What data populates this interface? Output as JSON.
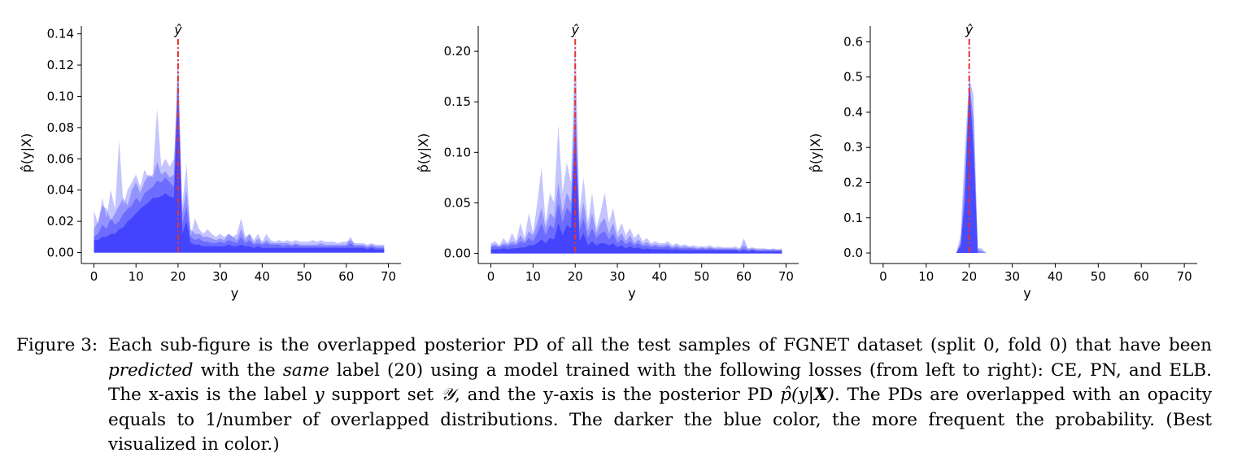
{
  "figure": {
    "label": "Figure 3:",
    "caption_parts": [
      {
        "t": "Each sub-figure is the overlapped posterior PD of all the test samples of FGNET dataset (split 0, fold 0) that have been "
      },
      {
        "t": "predicted",
        "s": "em"
      },
      {
        "t": " with the "
      },
      {
        "t": "same",
        "s": "em"
      },
      {
        "t": " label (20) using a model trained with the following losses (from left to right): CE, PN, and ELB. The x-axis is the label "
      },
      {
        "t": "y",
        "s": "math"
      },
      {
        "t": " support set "
      },
      {
        "t": "𝒴",
        "s": "math"
      },
      {
        "t": ", and the y-axis is the posterior PD "
      },
      {
        "t": "p̂(y|",
        "s": "math"
      },
      {
        "t": "X",
        "s": "mathbold"
      },
      {
        "t": ")",
        "s": "math"
      },
      {
        "t": ". The PDs are overlapped with an opacity equals to 1/number of overlapped distributions.  The darker the blue color, the more frequent the probability. (Best visualized in color.)"
      }
    ]
  },
  "colors": {
    "fill": "#3b3bff",
    "marker": "#e8322e",
    "axis": "#000000"
  },
  "chart_data": [
    {
      "type": "area",
      "xlabel": "y",
      "ylabel": "p̂(y|X)",
      "marker_label": "ŷ",
      "marker_x": 20,
      "xlim": [
        -3,
        73
      ],
      "ylim": [
        -0.007,
        0.145
      ],
      "xticks": [
        0,
        10,
        20,
        30,
        40,
        50,
        60,
        70
      ],
      "yticks": [
        0.0,
        0.02,
        0.04,
        0.06,
        0.08,
        0.1,
        0.12,
        0.14
      ],
      "ytick_labels": [
        "0.00",
        "0.02",
        "0.04",
        "0.06",
        "0.08",
        "0.10",
        "0.12",
        "0.14"
      ],
      "x": [
        0,
        1,
        2,
        3,
        4,
        5,
        6,
        7,
        8,
        9,
        10,
        11,
        12,
        13,
        14,
        15,
        16,
        17,
        18,
        19,
        20,
        21,
        22,
        23,
        24,
        25,
        26,
        27,
        28,
        29,
        30,
        31,
        32,
        33,
        34,
        35,
        36,
        37,
        38,
        39,
        40,
        41,
        42,
        43,
        44,
        45,
        46,
        47,
        48,
        49,
        50,
        51,
        52,
        53,
        54,
        55,
        56,
        57,
        58,
        59,
        60,
        61,
        62,
        63,
        64,
        65,
        66,
        67,
        68,
        69
      ],
      "series": [
        {
          "opacity": 0.3,
          "values": [
            0.027,
            0.018,
            0.035,
            0.022,
            0.04,
            0.028,
            0.072,
            0.03,
            0.04,
            0.045,
            0.05,
            0.042,
            0.053,
            0.048,
            0.05,
            0.092,
            0.055,
            0.06,
            0.055,
            0.06,
            0.105,
            0.03,
            0.057,
            0.01,
            0.022,
            0.015,
            0.012,
            0.015,
            0.012,
            0.01,
            0.012,
            0.01,
            0.012,
            0.01,
            0.012,
            0.022,
            0.01,
            0.012,
            0.008,
            0.012,
            0.007,
            0.012,
            0.008,
            0.007,
            0.008,
            0.007,
            0.008,
            0.007,
            0.008,
            0.007,
            0.007,
            0.007,
            0.008,
            0.007,
            0.008,
            0.007,
            0.007,
            0.007,
            0.006,
            0.007,
            0.007,
            0.008,
            0.006,
            0.006,
            0.006,
            0.005,
            0.006,
            0.005,
            0.005,
            0.005
          ]
        },
        {
          "opacity": 0.35,
          "values": [
            0.015,
            0.02,
            0.03,
            0.028,
            0.02,
            0.025,
            0.03,
            0.035,
            0.03,
            0.04,
            0.045,
            0.038,
            0.045,
            0.05,
            0.048,
            0.058,
            0.05,
            0.052,
            0.048,
            0.05,
            0.13,
            0.025,
            0.04,
            0.015,
            0.012,
            0.012,
            0.01,
            0.01,
            0.009,
            0.008,
            0.009,
            0.008,
            0.012,
            0.01,
            0.008,
            0.015,
            0.008,
            0.012,
            0.006,
            0.009,
            0.006,
            0.008,
            0.006,
            0.006,
            0.006,
            0.006,
            0.006,
            0.005,
            0.006,
            0.005,
            0.005,
            0.005,
            0.005,
            0.005,
            0.006,
            0.005,
            0.005,
            0.005,
            0.005,
            0.005,
            0.005,
            0.01,
            0.005,
            0.005,
            0.005,
            0.004,
            0.005,
            0.004,
            0.004,
            0.004
          ]
        },
        {
          "opacity": 0.45,
          "values": [
            0.01,
            0.012,
            0.018,
            0.015,
            0.022,
            0.018,
            0.02,
            0.025,
            0.028,
            0.03,
            0.035,
            0.032,
            0.038,
            0.04,
            0.042,
            0.046,
            0.045,
            0.048,
            0.045,
            0.042,
            0.12,
            0.018,
            0.03,
            0.01,
            0.008,
            0.009,
            0.007,
            0.007,
            0.006,
            0.006,
            0.007,
            0.006,
            0.008,
            0.007,
            0.006,
            0.01,
            0.006,
            0.008,
            0.005,
            0.006,
            0.005,
            0.006,
            0.005,
            0.005,
            0.005,
            0.004,
            0.005,
            0.004,
            0.005,
            0.004,
            0.004,
            0.004,
            0.004,
            0.004,
            0.004,
            0.004,
            0.004,
            0.004,
            0.004,
            0.004,
            0.004,
            0.006,
            0.004,
            0.004,
            0.004,
            0.003,
            0.004,
            0.003,
            0.003,
            0.003
          ]
        },
        {
          "opacity": 0.8,
          "values": [
            0.008,
            0.008,
            0.01,
            0.01,
            0.012,
            0.012,
            0.015,
            0.016,
            0.02,
            0.022,
            0.025,
            0.028,
            0.03,
            0.032,
            0.035,
            0.035,
            0.036,
            0.038,
            0.036,
            0.035,
            0.1,
            0.012,
            0.02,
            0.006,
            0.005,
            0.005,
            0.004,
            0.004,
            0.004,
            0.004,
            0.004,
            0.004,
            0.005,
            0.004,
            0.004,
            0.005,
            0.004,
            0.004,
            0.003,
            0.004,
            0.003,
            0.003,
            0.003,
            0.003,
            0.003,
            0.003,
            0.003,
            0.003,
            0.003,
            0.003,
            0.003,
            0.003,
            0.003,
            0.003,
            0.003,
            0.003,
            0.003,
            0.003,
            0.003,
            0.003,
            0.003,
            0.003,
            0.003,
            0.003,
            0.003,
            0.002,
            0.003,
            0.002,
            0.002,
            0.002
          ]
        }
      ]
    },
    {
      "type": "area",
      "xlabel": "y",
      "ylabel": "p̂(y|X)",
      "marker_label": "ŷ",
      "marker_x": 20,
      "xlim": [
        -3,
        73
      ],
      "ylim": [
        -0.01,
        0.225
      ],
      "xticks": [
        0,
        10,
        20,
        30,
        40,
        50,
        60,
        70
      ],
      "yticks": [
        0.0,
        0.05,
        0.1,
        0.15,
        0.2
      ],
      "ytick_labels": [
        "0.00",
        "0.05",
        "0.10",
        "0.15",
        "0.20"
      ],
      "x": [
        0,
        1,
        2,
        3,
        4,
        5,
        6,
        7,
        8,
        9,
        10,
        11,
        12,
        13,
        14,
        15,
        16,
        17,
        18,
        19,
        20,
        21,
        22,
        23,
        24,
        25,
        26,
        27,
        28,
        29,
        30,
        31,
        32,
        33,
        34,
        35,
        36,
        37,
        38,
        39,
        40,
        41,
        42,
        43,
        44,
        45,
        46,
        47,
        48,
        49,
        50,
        51,
        52,
        53,
        54,
        55,
        56,
        57,
        58,
        59,
        60,
        61,
        62,
        63,
        64,
        65,
        66,
        67,
        68,
        69
      ],
      "series": [
        {
          "opacity": 0.3,
          "values": [
            0.01,
            0.012,
            0.008,
            0.015,
            0.01,
            0.02,
            0.012,
            0.03,
            0.015,
            0.04,
            0.02,
            0.05,
            0.085,
            0.03,
            0.06,
            0.05,
            0.127,
            0.06,
            0.09,
            0.07,
            0.22,
            0.04,
            0.075,
            0.03,
            0.06,
            0.025,
            0.04,
            0.06,
            0.03,
            0.045,
            0.02,
            0.03,
            0.018,
            0.025,
            0.015,
            0.02,
            0.012,
            0.015,
            0.01,
            0.012,
            0.01,
            0.01,
            0.012,
            0.008,
            0.01,
            0.008,
            0.009,
            0.007,
            0.008,
            0.007,
            0.007,
            0.007,
            0.008,
            0.006,
            0.007,
            0.006,
            0.006,
            0.006,
            0.007,
            0.005,
            0.008,
            0.005,
            0.006,
            0.005,
            0.005,
            0.005,
            0.004,
            0.005,
            0.004,
            0.005
          ]
        },
        {
          "opacity": 0.35,
          "values": [
            0.008,
            0.009,
            0.007,
            0.01,
            0.009,
            0.012,
            0.01,
            0.018,
            0.012,
            0.022,
            0.018,
            0.03,
            0.045,
            0.025,
            0.04,
            0.035,
            0.07,
            0.04,
            0.06,
            0.05,
            0.17,
            0.03,
            0.05,
            0.022,
            0.04,
            0.02,
            0.03,
            0.035,
            0.02,
            0.03,
            0.015,
            0.02,
            0.012,
            0.018,
            0.01,
            0.014,
            0.009,
            0.011,
            0.008,
            0.009,
            0.008,
            0.008,
            0.009,
            0.006,
            0.008,
            0.006,
            0.007,
            0.006,
            0.006,
            0.005,
            0.006,
            0.005,
            0.006,
            0.005,
            0.005,
            0.005,
            0.005,
            0.005,
            0.005,
            0.004,
            0.015,
            0.004,
            0.005,
            0.004,
            0.004,
            0.004,
            0.004,
            0.004,
            0.003,
            0.004
          ]
        },
        {
          "opacity": 0.45,
          "values": [
            0.006,
            0.007,
            0.006,
            0.008,
            0.007,
            0.009,
            0.008,
            0.012,
            0.01,
            0.015,
            0.012,
            0.02,
            0.03,
            0.018,
            0.028,
            0.025,
            0.05,
            0.03,
            0.045,
            0.04,
            0.14,
            0.022,
            0.035,
            0.015,
            0.025,
            0.015,
            0.02,
            0.022,
            0.014,
            0.02,
            0.01,
            0.014,
            0.009,
            0.012,
            0.008,
            0.01,
            0.007,
            0.008,
            0.006,
            0.007,
            0.006,
            0.006,
            0.007,
            0.005,
            0.006,
            0.005,
            0.005,
            0.005,
            0.005,
            0.004,
            0.005,
            0.004,
            0.005,
            0.004,
            0.004,
            0.004,
            0.004,
            0.004,
            0.004,
            0.003,
            0.005,
            0.003,
            0.004,
            0.003,
            0.003,
            0.003,
            0.003,
            0.003,
            0.003,
            0.003
          ]
        },
        {
          "opacity": 0.8,
          "values": [
            0.004,
            0.004,
            0.004,
            0.005,
            0.004,
            0.005,
            0.005,
            0.006,
            0.006,
            0.008,
            0.008,
            0.01,
            0.014,
            0.01,
            0.015,
            0.014,
            0.03,
            0.018,
            0.028,
            0.025,
            0.115,
            0.012,
            0.02,
            0.008,
            0.012,
            0.008,
            0.01,
            0.01,
            0.008,
            0.01,
            0.006,
            0.008,
            0.005,
            0.007,
            0.005,
            0.006,
            0.004,
            0.005,
            0.004,
            0.004,
            0.004,
            0.004,
            0.004,
            0.003,
            0.004,
            0.003,
            0.003,
            0.003,
            0.003,
            0.003,
            0.003,
            0.003,
            0.003,
            0.003,
            0.003,
            0.003,
            0.003,
            0.003,
            0.003,
            0.002,
            0.003,
            0.002,
            0.003,
            0.002,
            0.002,
            0.002,
            0.002,
            0.002,
            0.002,
            0.002
          ]
        }
      ]
    },
    {
      "type": "area",
      "xlabel": "y",
      "ylabel": "p̂(y|X)",
      "marker_label": "ŷ",
      "marker_x": 20,
      "xlim": [
        -3,
        73
      ],
      "ylim": [
        -0.03,
        0.645
      ],
      "xticks": [
        0,
        10,
        20,
        30,
        40,
        50,
        60,
        70
      ],
      "yticks": [
        0.0,
        0.1,
        0.2,
        0.3,
        0.4,
        0.5,
        0.6
      ],
      "ytick_labels": [
        "0.0",
        "0.1",
        "0.2",
        "0.3",
        "0.4",
        "0.5",
        "0.6"
      ],
      "x": [
        17,
        18,
        19,
        20,
        21,
        22,
        23,
        24
      ],
      "series": [
        {
          "opacity": 0.3,
          "values": [
            0.0,
            0.05,
            0.3,
            0.5,
            0.45,
            0.015,
            0.012,
            0.0
          ]
        },
        {
          "opacity": 0.45,
          "values": [
            0.0,
            0.03,
            0.22,
            0.49,
            0.38,
            0.01,
            0.005,
            0.0
          ]
        },
        {
          "opacity": 0.8,
          "values": [
            0.0,
            0.02,
            0.15,
            0.48,
            0.3,
            0.0,
            0.0,
            0.0
          ]
        }
      ]
    }
  ]
}
